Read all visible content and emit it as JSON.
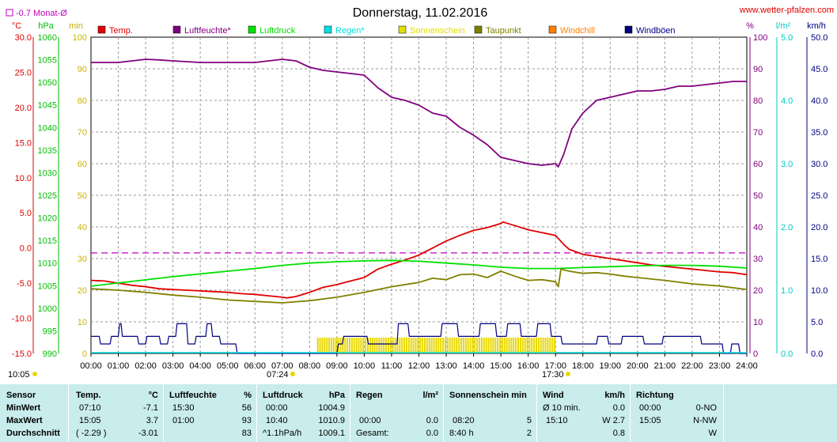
{
  "header": {
    "title": "Donnerstag, 11.02.2016",
    "site": "www.wetter-pfalzen.com",
    "month_avg_label": "-0.7 Monat-Ø"
  },
  "axis_units": {
    "temp": "°C",
    "pressure": "hPa",
    "sun": "min",
    "humidity": "%",
    "rain": "l/m²",
    "wind": "km/h"
  },
  "legend": [
    {
      "label": "Temp.",
      "color": "#e00000"
    },
    {
      "label": "Luftfeuchte*",
      "color": "#800080"
    },
    {
      "label": "Luftdruck",
      "color": "#00e000"
    },
    {
      "label": "Regen*",
      "color": "#00e0e0"
    },
    {
      "label": "Sonnenschein",
      "color": "#e0e000"
    },
    {
      "label": "Taupunkt",
      "color": "#808000"
    },
    {
      "label": "Windchill",
      "color": "#ff8000"
    },
    {
      "label": "Windböen",
      "color": "#000080"
    }
  ],
  "sun": {
    "rise": "07:24",
    "set": "17:30",
    "now": "10:05"
  },
  "chart_data": {
    "type": "line",
    "title": "Donnerstag, 11.02.2016",
    "x_ticks": [
      "00:00",
      "01:00",
      "02:00",
      "03:00",
      "04:00",
      "05:00",
      "06:00",
      "07:00",
      "08:00",
      "09:00",
      "10:00",
      "11:00",
      "12:00",
      "13:00",
      "14:00",
      "15:00",
      "16:00",
      "17:00",
      "18:00",
      "19:00",
      "20:00",
      "21:00",
      "22:00",
      "23:00",
      "24:00"
    ],
    "axes": {
      "temp": {
        "unit": "°C",
        "range": [
          -15,
          30
        ],
        "ticks": [
          "30.0",
          "25.0",
          "20.0",
          "15.0",
          "10.0",
          "5.0",
          "0.0",
          "-5.0",
          "-10.0",
          "-15.0"
        ]
      },
      "pressure": {
        "unit": "hPa",
        "range": [
          990,
          1060
        ],
        "ticks": [
          "1060",
          "1055",
          "1050",
          "1045",
          "1040",
          "1035",
          "1030",
          "1025",
          "1020",
          "1015",
          "1010",
          "1005",
          "1000",
          "995",
          "990"
        ]
      },
      "sun": {
        "unit": "min",
        "range": [
          0,
          100
        ],
        "ticks": [
          "100",
          "90",
          "80",
          "70",
          "60",
          "50",
          "40",
          "30",
          "20",
          "10",
          "0"
        ]
      },
      "humidity": {
        "unit": "%",
        "range": [
          0,
          100
        ],
        "ticks": [
          "100",
          "90",
          "80",
          "70",
          "60",
          "50",
          "40",
          "30",
          "20",
          "10",
          "0"
        ]
      },
      "rain": {
        "unit": "l/m²",
        "range": [
          0,
          5
        ],
        "ticks": [
          "5.0",
          "4.0",
          "3.0",
          "2.0",
          "1.0",
          "0.0"
        ]
      },
      "wind": {
        "unit": "km/h",
        "range": [
          0,
          50
        ],
        "ticks": [
          "50.0",
          "45.0",
          "40.0",
          "35.0",
          "30.0",
          "25.0",
          "20.0",
          "15.0",
          "10.0",
          "5.0",
          "0.0"
        ]
      }
    },
    "grid": true,
    "reference_line": {
      "label": "-0.7 Monat-Ø",
      "axis": "temp",
      "value": -0.7,
      "color": "#c000c0"
    },
    "series": [
      {
        "name": "Temp.",
        "axis": "temp",
        "color": "#e00000",
        "x": [
          0,
          0.5,
          1,
          1.5,
          2,
          2.5,
          3,
          3.5,
          4,
          4.5,
          5,
          5.5,
          6,
          6.5,
          7,
          7.17,
          7.5,
          8,
          8.5,
          9,
          9.5,
          10,
          10.5,
          11,
          11.5,
          12,
          12.5,
          13,
          13.5,
          14,
          14.5,
          15,
          15.08,
          15.5,
          16,
          16.5,
          17,
          17.3,
          17.5,
          18,
          18.5,
          19,
          19.5,
          20,
          20.5,
          21,
          21.5,
          22,
          22.5,
          23,
          23.5,
          24
        ],
        "values": [
          -4.6,
          -4.7,
          -5.0,
          -5.3,
          -5.5,
          -5.8,
          -5.9,
          -6.0,
          -6.1,
          -6.2,
          -6.3,
          -6.5,
          -6.6,
          -6.8,
          -7.0,
          -7.1,
          -6.9,
          -6.3,
          -5.6,
          -5.2,
          -4.7,
          -4.2,
          -3.0,
          -2.3,
          -1.7,
          -1.0,
          0.0,
          1.0,
          1.8,
          2.5,
          2.9,
          3.5,
          3.7,
          3.2,
          2.6,
          2.2,
          1.8,
          0.5,
          -0.2,
          -0.9,
          -1.2,
          -1.5,
          -1.8,
          -2.1,
          -2.4,
          -2.6,
          -2.8,
          -3.0,
          -3.2,
          -3.4,
          -3.5,
          -3.8
        ]
      },
      {
        "name": "Luftfeuchte*",
        "axis": "humidity",
        "color": "#800080",
        "x": [
          0,
          1,
          1.5,
          2,
          2.5,
          3,
          4,
          5,
          6,
          6.5,
          7,
          7.5,
          8,
          8.5,
          9,
          9.5,
          10,
          10.5,
          11,
          11.5,
          12,
          12.5,
          13,
          13.5,
          14,
          14.5,
          15,
          15.5,
          16,
          16.5,
          17,
          17.1,
          17.3,
          17.6,
          18,
          18.5,
          19,
          19.5,
          20,
          20.5,
          21,
          21.5,
          22,
          22.5,
          23,
          23.5,
          24
        ],
        "values": [
          92,
          92,
          92.5,
          93,
          92.8,
          92.5,
          92,
          92,
          92,
          92.5,
          93,
          92.5,
          90.5,
          89.5,
          89,
          88.5,
          88,
          84,
          81,
          80,
          78.5,
          76,
          75,
          71.5,
          69,
          66,
          62,
          61,
          60,
          59.5,
          60,
          59,
          63,
          71,
          76,
          80,
          81,
          82,
          83,
          83,
          83.5,
          84.5,
          84.5,
          85,
          85.5,
          86,
          86
        ]
      },
      {
        "name": "Luftdruck",
        "axis": "pressure",
        "color": "#00e000",
        "x": [
          0,
          1,
          2,
          3,
          4,
          5,
          6,
          7,
          8,
          9,
          10,
          11,
          12,
          13,
          14,
          15,
          16,
          17,
          18,
          19,
          20,
          21,
          22,
          23,
          24
        ],
        "values": [
          1004.9,
          1005.6,
          1006.3,
          1007.0,
          1007.6,
          1008.2,
          1008.8,
          1009.5,
          1010.0,
          1010.3,
          1010.5,
          1010.6,
          1010.4,
          1010.0,
          1009.6,
          1009.1,
          1008.8,
          1008.8,
          1009.0,
          1009.2,
          1009.4,
          1009.5,
          1009.5,
          1009.3,
          1008.9
        ]
      },
      {
        "name": "Taupunkt",
        "axis": "temp",
        "color": "#808000",
        "x": [
          0,
          1,
          2,
          3,
          4,
          5,
          6,
          7,
          8,
          9,
          10,
          11,
          12,
          12.5,
          13,
          13.5,
          14,
          14.5,
          15,
          15.5,
          16,
          16.5,
          17,
          17.1,
          17.2,
          17.5,
          18,
          18.5,
          19,
          19.5,
          20,
          21,
          22,
          23,
          24
        ],
        "values": [
          -5.8,
          -6.0,
          -6.3,
          -6.7,
          -7.0,
          -7.4,
          -7.6,
          -7.8,
          -7.5,
          -7.0,
          -6.3,
          -5.5,
          -4.9,
          -4.3,
          -4.5,
          -3.8,
          -3.7,
          -4.2,
          -3.3,
          -4.0,
          -4.6,
          -4.5,
          -4.8,
          -5.5,
          -3.0,
          -3.3,
          -3.6,
          -3.5,
          -3.7,
          -4.0,
          -4.2,
          -4.6,
          -5.1,
          -5.4,
          -5.9
        ]
      },
      {
        "name": "Windböen",
        "axis": "wind",
        "color": "#000080",
        "x": [
          0,
          0.3,
          0.35,
          0.7,
          0.75,
          1,
          1.05,
          1.1,
          1.15,
          1.7,
          1.75,
          2,
          2.05,
          2.5,
          2.55,
          2.8,
          2.85,
          3.1,
          3.15,
          3.5,
          3.55,
          3.8,
          3.85,
          4.2,
          4.25,
          4.4,
          4.45,
          4.7,
          4.75,
          5.3,
          5.35,
          7.2,
          9,
          9.05,
          9.2,
          9.25,
          10.1,
          10.15,
          11.2,
          11.25,
          11.6,
          11.65,
          12.8,
          12.85,
          13.4,
          13.45,
          14.2,
          14.25,
          14.8,
          14.85,
          15.2,
          15.25,
          15.7,
          15.75,
          16.3,
          16.35,
          16.8,
          16.85,
          17.2,
          17.25,
          18.5,
          18.55,
          18.9,
          18.95,
          19.4,
          19.45,
          20.2,
          20.25,
          20.9,
          20.95,
          22.3,
          22.35,
          23.1,
          23.15,
          23.4,
          23.45,
          23.7,
          23.75,
          24
        ],
        "values": [
          2.7,
          2.7,
          1.5,
          1.5,
          2.7,
          2.7,
          4.7,
          4.7,
          2.7,
          2.7,
          1.5,
          1.5,
          2.7,
          2.7,
          1.5,
          1.5,
          2.7,
          2.7,
          4.7,
          4.7,
          1.5,
          1.5,
          2.7,
          2.7,
          4.7,
          4.7,
          2.7,
          2.7,
          1.5,
          1.5,
          0,
          0,
          0,
          1.5,
          1.5,
          2.7,
          2.7,
          1.5,
          1.5,
          4.7,
          4.7,
          2.7,
          2.7,
          4.7,
          4.7,
          2.7,
          2.7,
          4.7,
          4.7,
          2.7,
          2.7,
          4.7,
          4.7,
          2.7,
          2.7,
          4.7,
          4.7,
          2.7,
          2.7,
          1.5,
          1.5,
          2.7,
          2.7,
          1.5,
          1.5,
          2.7,
          2.7,
          1.5,
          1.5,
          2.7,
          2.7,
          1.5,
          1.5,
          0,
          0,
          1.5,
          1.5,
          0,
          0
        ]
      },
      {
        "name": "Sonnenschein",
        "axis": "sun",
        "type": "bar",
        "color": "#e8d800",
        "x_start": 8.3,
        "x_end": 17.0,
        "value": 5
      }
    ]
  },
  "stats": {
    "headers": {
      "sensor": "Sensor",
      "temp": "Temp.",
      "temp_unit": "°C",
      "hum": "Luftfeuchte",
      "hum_unit": "%",
      "press": "Luftdruck",
      "press_unit": "hPa",
      "rain": "Regen",
      "rain_unit": "l/m²",
      "sun": "Sonnenschein min",
      "wind": "Wind",
      "wind_unit": "km/h",
      "dir": "Richtung"
    },
    "rows": [
      {
        "label": "MinWert",
        "temp_time": "07:10",
        "temp_val": "-7.1",
        "hum_time": "15:30",
        "hum_val": "56",
        "press_time": "00:00",
        "press_val": "1004.9",
        "rain_time": "",
        "rain_val": "",
        "sun_time": "",
        "sun_val": "",
        "wind_time": "Ø 10 min.",
        "wind_val": "0.0",
        "dir_time": "00:00",
        "dir_val": "0-NO"
      },
      {
        "label": "MaxWert",
        "temp_time": "15:05",
        "temp_val": "3.7",
        "hum_time": "01:00",
        "hum_val": "93",
        "press_time": "10:40",
        "press_val": "1010.9",
        "rain_time": "00:00",
        "rain_val": "0.0",
        "sun_time": "08:20",
        "sun_val": "5",
        "wind_time": "15:10",
        "wind_val": "W 2.7",
        "dir_time": "15:05",
        "dir_val": "N-NW"
      },
      {
        "label": "Durchschnitt",
        "temp_time": "( -2.29 )",
        "temp_val": "-3.01",
        "hum_time": "",
        "hum_val": "83",
        "press_time": "^1.1hPa/h",
        "press_val": "1009.1",
        "rain_time": "Gesamt:",
        "rain_val": "0.0",
        "sun_time": "8:40 h",
        "sun_val": "2",
        "wind_time": "",
        "wind_val": "0.8",
        "dir_time": "",
        "dir_val": "W"
      }
    ]
  }
}
